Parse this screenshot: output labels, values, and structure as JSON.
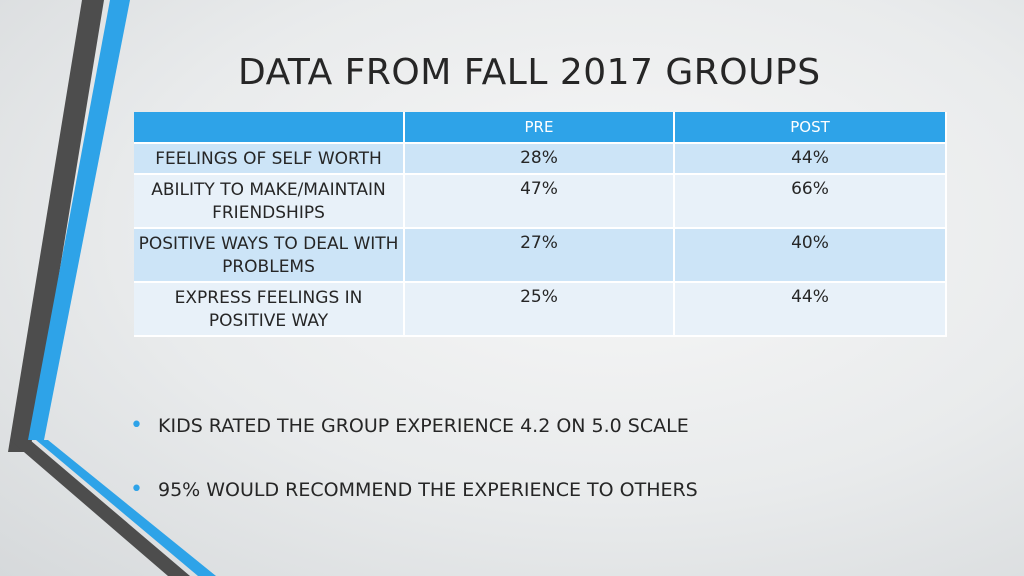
{
  "slide": {
    "title": "DATA FROM FALL 2017 GROUPS"
  },
  "table": {
    "headers": [
      "",
      "PRE",
      "POST"
    ],
    "rows": [
      {
        "label": "FEELINGS OF SELF WORTH",
        "pre": "28%",
        "post": "44%"
      },
      {
        "label": "ABILITY TO MAKE/MAINTAIN FRIENDSHIPS",
        "pre": "47%",
        "post": "66%"
      },
      {
        "label": "POSITIVE WAYS TO DEAL WITH PROBLEMS",
        "pre": "27%",
        "post": "40%"
      },
      {
        "label": "EXPRESS FEELINGS IN POSITIVE WAY",
        "pre": "25%",
        "post": "44%"
      }
    ]
  },
  "bullets": [
    "KIDS RATED THE GROUP EXPERIENCE 4.2 ON 5.0 SCALE",
    "95% WOULD RECOMMEND THE EXPERIENCE TO OTHERS"
  ],
  "colors": {
    "accent": "#2ea3e8",
    "header_bg": "#2ea3e8",
    "row_odd": "#cce4f7",
    "row_even": "#e8f1f9",
    "stripe_dark": "#4d4d4d",
    "text": "#262626"
  }
}
